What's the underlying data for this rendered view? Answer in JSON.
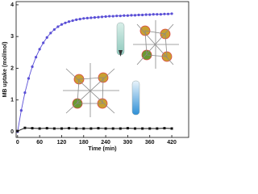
{
  "chart_data": {
    "type": "line",
    "x_label": "Time (min)",
    "y_label": "MB uptake (mol/mol)",
    "xlim": [
      -4,
      466
    ],
    "ylim": [
      -0.18,
      4.1
    ],
    "xticks": [
      0,
      60,
      120,
      180,
      240,
      300,
      360,
      420
    ],
    "yticks": [
      0,
      1,
      2,
      3,
      4
    ],
    "series": [
      {
        "color": "#5a4fd6",
        "marker": "circle",
        "x": [
          0,
          10,
          20,
          30,
          40,
          50,
          60,
          70,
          80,
          90,
          100,
          110,
          120,
          130,
          140,
          150,
          160,
          170,
          180,
          190,
          200,
          210,
          220,
          230,
          240,
          250,
          260,
          270,
          280,
          290,
          300,
          310,
          320,
          330,
          340,
          350,
          360,
          370,
          380,
          390,
          400,
          410,
          420
        ],
        "values": [
          0,
          0.67,
          1.23,
          1.68,
          2.05,
          2.35,
          2.6,
          2.8,
          2.97,
          3.11,
          3.22,
          3.31,
          3.38,
          3.43,
          3.47,
          3.5,
          3.53,
          3.55,
          3.57,
          3.58,
          3.59,
          3.6,
          3.61,
          3.62,
          3.63,
          3.64,
          3.64,
          3.65,
          3.65,
          3.66,
          3.66,
          3.67,
          3.67,
          3.68,
          3.68,
          3.69,
          3.69,
          3.7,
          3.7,
          3.7,
          3.71,
          3.71,
          3.72
        ]
      },
      {
        "color": "#111111",
        "marker": "square",
        "x": [
          0,
          20,
          40,
          60,
          80,
          100,
          120,
          140,
          160,
          180,
          200,
          220,
          240,
          260,
          280,
          300,
          320,
          340,
          360,
          380,
          400,
          420
        ],
        "values": [
          0.02,
          0.12,
          0.11,
          0.1,
          0.11,
          0.1,
          0.1,
          0.11,
          0.1,
          0.1,
          0.1,
          0.11,
          0.1,
          0.1,
          0.1,
          0.11,
          0.1,
          0.1,
          0.1,
          0.1,
          0.11,
          0.1
        ]
      }
    ]
  }
}
